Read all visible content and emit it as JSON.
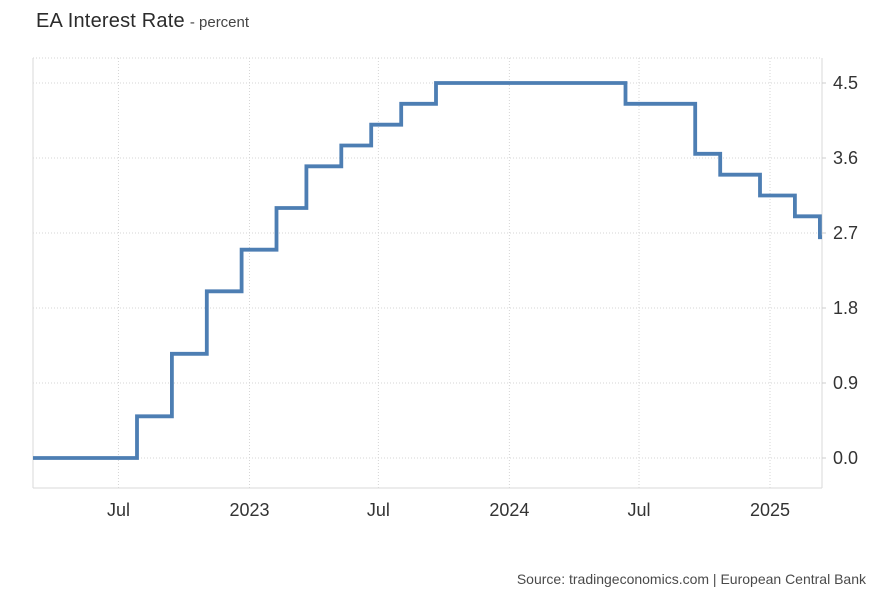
{
  "header": {
    "title": "EA Interest Rate",
    "subtitle": "- percent"
  },
  "footer": {
    "source": "Source: tradingeconomics.com | European Central Bank"
  },
  "chart_data": {
    "type": "line",
    "step": true,
    "title": "EA Interest Rate - percent",
    "xlabel": "",
    "ylabel": "percent",
    "grid": "dotted",
    "legend": "none",
    "axis_side": "right",
    "line_color": "#4d7eb3",
    "grid_color": "#d5d5d5",
    "border_color": "#dadada",
    "label_color": "#333333",
    "x_domain": [
      "2022-03-03",
      "2025-03-15"
    ],
    "y_domain": [
      -0.36,
      4.8
    ],
    "x_ticks": [
      {
        "date": "2022-07-01",
        "label": "Jul"
      },
      {
        "date": "2023-01-01",
        "label": "2023"
      },
      {
        "date": "2023-07-01",
        "label": "Jul"
      },
      {
        "date": "2024-01-01",
        "label": "2024"
      },
      {
        "date": "2024-07-01",
        "label": "Jul"
      },
      {
        "date": "2025-01-01",
        "label": "2025"
      }
    ],
    "y_ticks": [
      {
        "value": 0.0,
        "label": "0.0"
      },
      {
        "value": 0.9,
        "label": "0.9"
      },
      {
        "value": 1.8,
        "label": "1.8"
      },
      {
        "value": 2.7,
        "label": "2.7"
      },
      {
        "value": 3.6,
        "label": "3.6"
      },
      {
        "value": 4.5,
        "label": "4.5"
      }
    ],
    "series": [
      {
        "name": "EA Interest Rate",
        "unit": "percent",
        "points": [
          {
            "date": "2022-03-03",
            "value": 0.0
          },
          {
            "date": "2022-07-27",
            "value": 0.5
          },
          {
            "date": "2022-09-14",
            "value": 1.25
          },
          {
            "date": "2022-11-02",
            "value": 2.0
          },
          {
            "date": "2022-12-21",
            "value": 2.5
          },
          {
            "date": "2023-02-08",
            "value": 3.0
          },
          {
            "date": "2023-03-22",
            "value": 3.5
          },
          {
            "date": "2023-05-10",
            "value": 3.75
          },
          {
            "date": "2023-06-21",
            "value": 4.0
          },
          {
            "date": "2023-08-02",
            "value": 4.25
          },
          {
            "date": "2023-09-20",
            "value": 4.5
          },
          {
            "date": "2024-06-12",
            "value": 4.25
          },
          {
            "date": "2024-09-18",
            "value": 3.65
          },
          {
            "date": "2024-10-23",
            "value": 3.4
          },
          {
            "date": "2024-12-18",
            "value": 3.15
          },
          {
            "date": "2025-02-05",
            "value": 2.9
          },
          {
            "date": "2025-03-12",
            "value": 2.65
          }
        ]
      }
    ]
  }
}
